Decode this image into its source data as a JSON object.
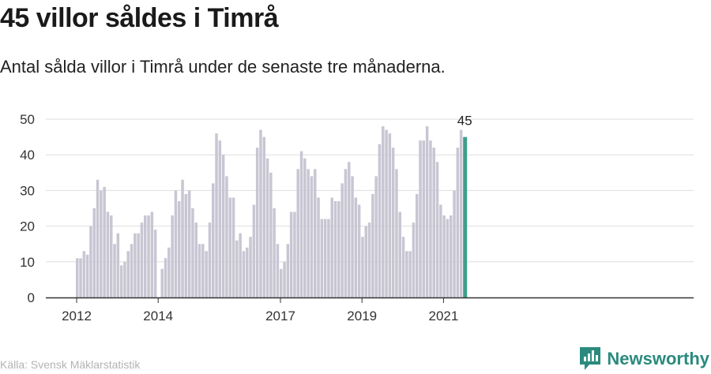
{
  "title": "45 villor såldes i Timrå",
  "subtitle": "Antal sålda villor i Timrå under de senaste tre månaderna.",
  "source": "Källa: Svensk Mäklarstatistik",
  "brand": {
    "name": "Newsworthy",
    "icon": "newsworthy-logo-icon",
    "color": "#2b8a7e"
  },
  "colors": {
    "bar": "#c8c6d3",
    "highlight": "#3e9f8a",
    "grid": "#dedede",
    "axis": "#333333"
  },
  "chart_data": {
    "type": "bar",
    "title": "45 villor såldes i Timrå",
    "subtitle": "Antal sålda villor i Timrå under de senaste tre månaderna.",
    "xlabel": "",
    "ylabel": "",
    "ylim": [
      0,
      50
    ],
    "yticks": [
      0,
      10,
      20,
      30,
      40,
      50
    ],
    "grid": true,
    "x_tick_labels": [
      {
        "label": "2012",
        "index": 0
      },
      {
        "label": "2014",
        "index": 24
      },
      {
        "label": "2017",
        "index": 60
      },
      {
        "label": "2019",
        "index": 84
      },
      {
        "label": "2021",
        "index": 108
      }
    ],
    "highlight_label": "45",
    "values": [
      11,
      11,
      13,
      12,
      20,
      25,
      33,
      30,
      31,
      24,
      23,
      15,
      18,
      9,
      10,
      13,
      15,
      18,
      18,
      21,
      23,
      23,
      24,
      19,
      null,
      8,
      11,
      14,
      23,
      30,
      27,
      33,
      29,
      30,
      25,
      21,
      15,
      15,
      13,
      21,
      32,
      46,
      44,
      40,
      34,
      28,
      28,
      16,
      18,
      13,
      14,
      17,
      26,
      42,
      47,
      45,
      39,
      35,
      25,
      15,
      8,
      10,
      15,
      24,
      24,
      36,
      41,
      39,
      36,
      34,
      36,
      28,
      22,
      22,
      22,
      28,
      27,
      27,
      32,
      36,
      38,
      34,
      28,
      26,
      17,
      20,
      21,
      29,
      34,
      43,
      48,
      47,
      46,
      42,
      36,
      24,
      17,
      13,
      13,
      21,
      29,
      44,
      44,
      48,
      44,
      42,
      38,
      26,
      23,
      22,
      23,
      30,
      42,
      47,
      45
    ],
    "highlight_index": 114
  }
}
